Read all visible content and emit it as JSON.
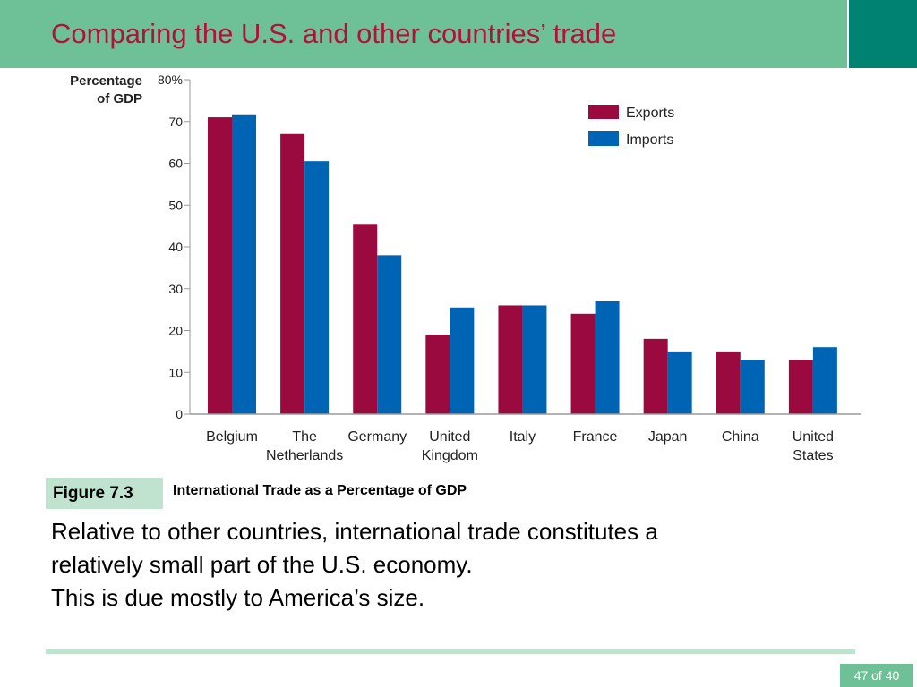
{
  "slide": {
    "title": "Comparing the U.S. and other countries’ trade",
    "page_indicator": "47 of 40"
  },
  "colors": {
    "title_bar": "#6ec196",
    "title_accent": "#008272",
    "title_text": "#b0123b",
    "exports": "#9b0a3e",
    "imports": "#0064b4"
  },
  "figure": {
    "label": "Figure 7.3",
    "caption": "International Trade as a Percentage of GDP"
  },
  "body": {
    "line1": "Relative to other countries, international trade constitutes a",
    "line2": "relatively small part of the U.S. economy.",
    "line3": "This is due mostly to America’s size."
  },
  "chart_data": {
    "type": "bar",
    "ylabel": [
      "Percentage",
      "of GDP"
    ],
    "ylim": [
      0,
      80
    ],
    "yticks": [
      "0",
      "10",
      "20",
      "30",
      "40",
      "50",
      "60",
      "70",
      "80%"
    ],
    "legend_position": "top-right",
    "categories": [
      [
        "Belgium"
      ],
      [
        "The",
        "Netherlands"
      ],
      [
        "Germany"
      ],
      [
        "United",
        "Kingdom"
      ],
      [
        "Italy"
      ],
      [
        "France"
      ],
      [
        "Japan"
      ],
      [
        "China"
      ],
      [
        "United",
        "States"
      ]
    ],
    "series": [
      {
        "name": "Exports",
        "values": [
          71,
          67,
          45.5,
          19,
          26,
          24,
          18,
          15,
          13
        ]
      },
      {
        "name": "Imports",
        "values": [
          71.5,
          60.5,
          38,
          25.5,
          26,
          27,
          15,
          13,
          16
        ]
      }
    ]
  }
}
